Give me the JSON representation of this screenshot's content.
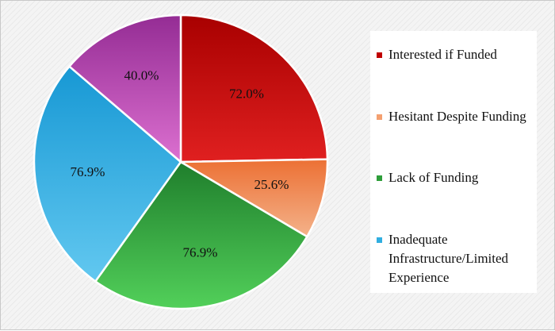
{
  "chart_data": {
    "type": "pie",
    "slices": [
      {
        "label": "Interested if Funded",
        "value": 72.0,
        "display": "72.0%",
        "color_light": "#e02020",
        "color_dark": "#a80000"
      },
      {
        "label": "Hesitant Despite Funding",
        "value": 25.6,
        "display": "25.6%",
        "color_light": "#f4b28a",
        "color_dark": "#ec7034"
      },
      {
        "label": "Lack of Funding",
        "value": 76.9,
        "display": "76.9%",
        "color_light": "#52d05a",
        "color_dark": "#1f7e2c"
      },
      {
        "label": "Inadequate Infrastructure/Limited Experience",
        "value": 76.9,
        "display": "76.9%",
        "color_light": "#62c8f0",
        "color_dark": "#1798d4"
      },
      {
        "label": "",
        "value": 40.0,
        "display": "40.0%",
        "color_light": "#dc70d0",
        "color_dark": "#942c94"
      }
    ],
    "legend": {
      "position": "right",
      "items": [
        {
          "label": "Interested if Funded",
          "color": "#c00000"
        },
        {
          "label": "Hesitant Despite Funding",
          "color": "#f4a070"
        },
        {
          "label": "Lack of Funding",
          "color": "#2e9e3a"
        },
        {
          "label": "Inadequate Infrastructure/Limited Experience",
          "color": "#30aee0"
        }
      ]
    }
  }
}
